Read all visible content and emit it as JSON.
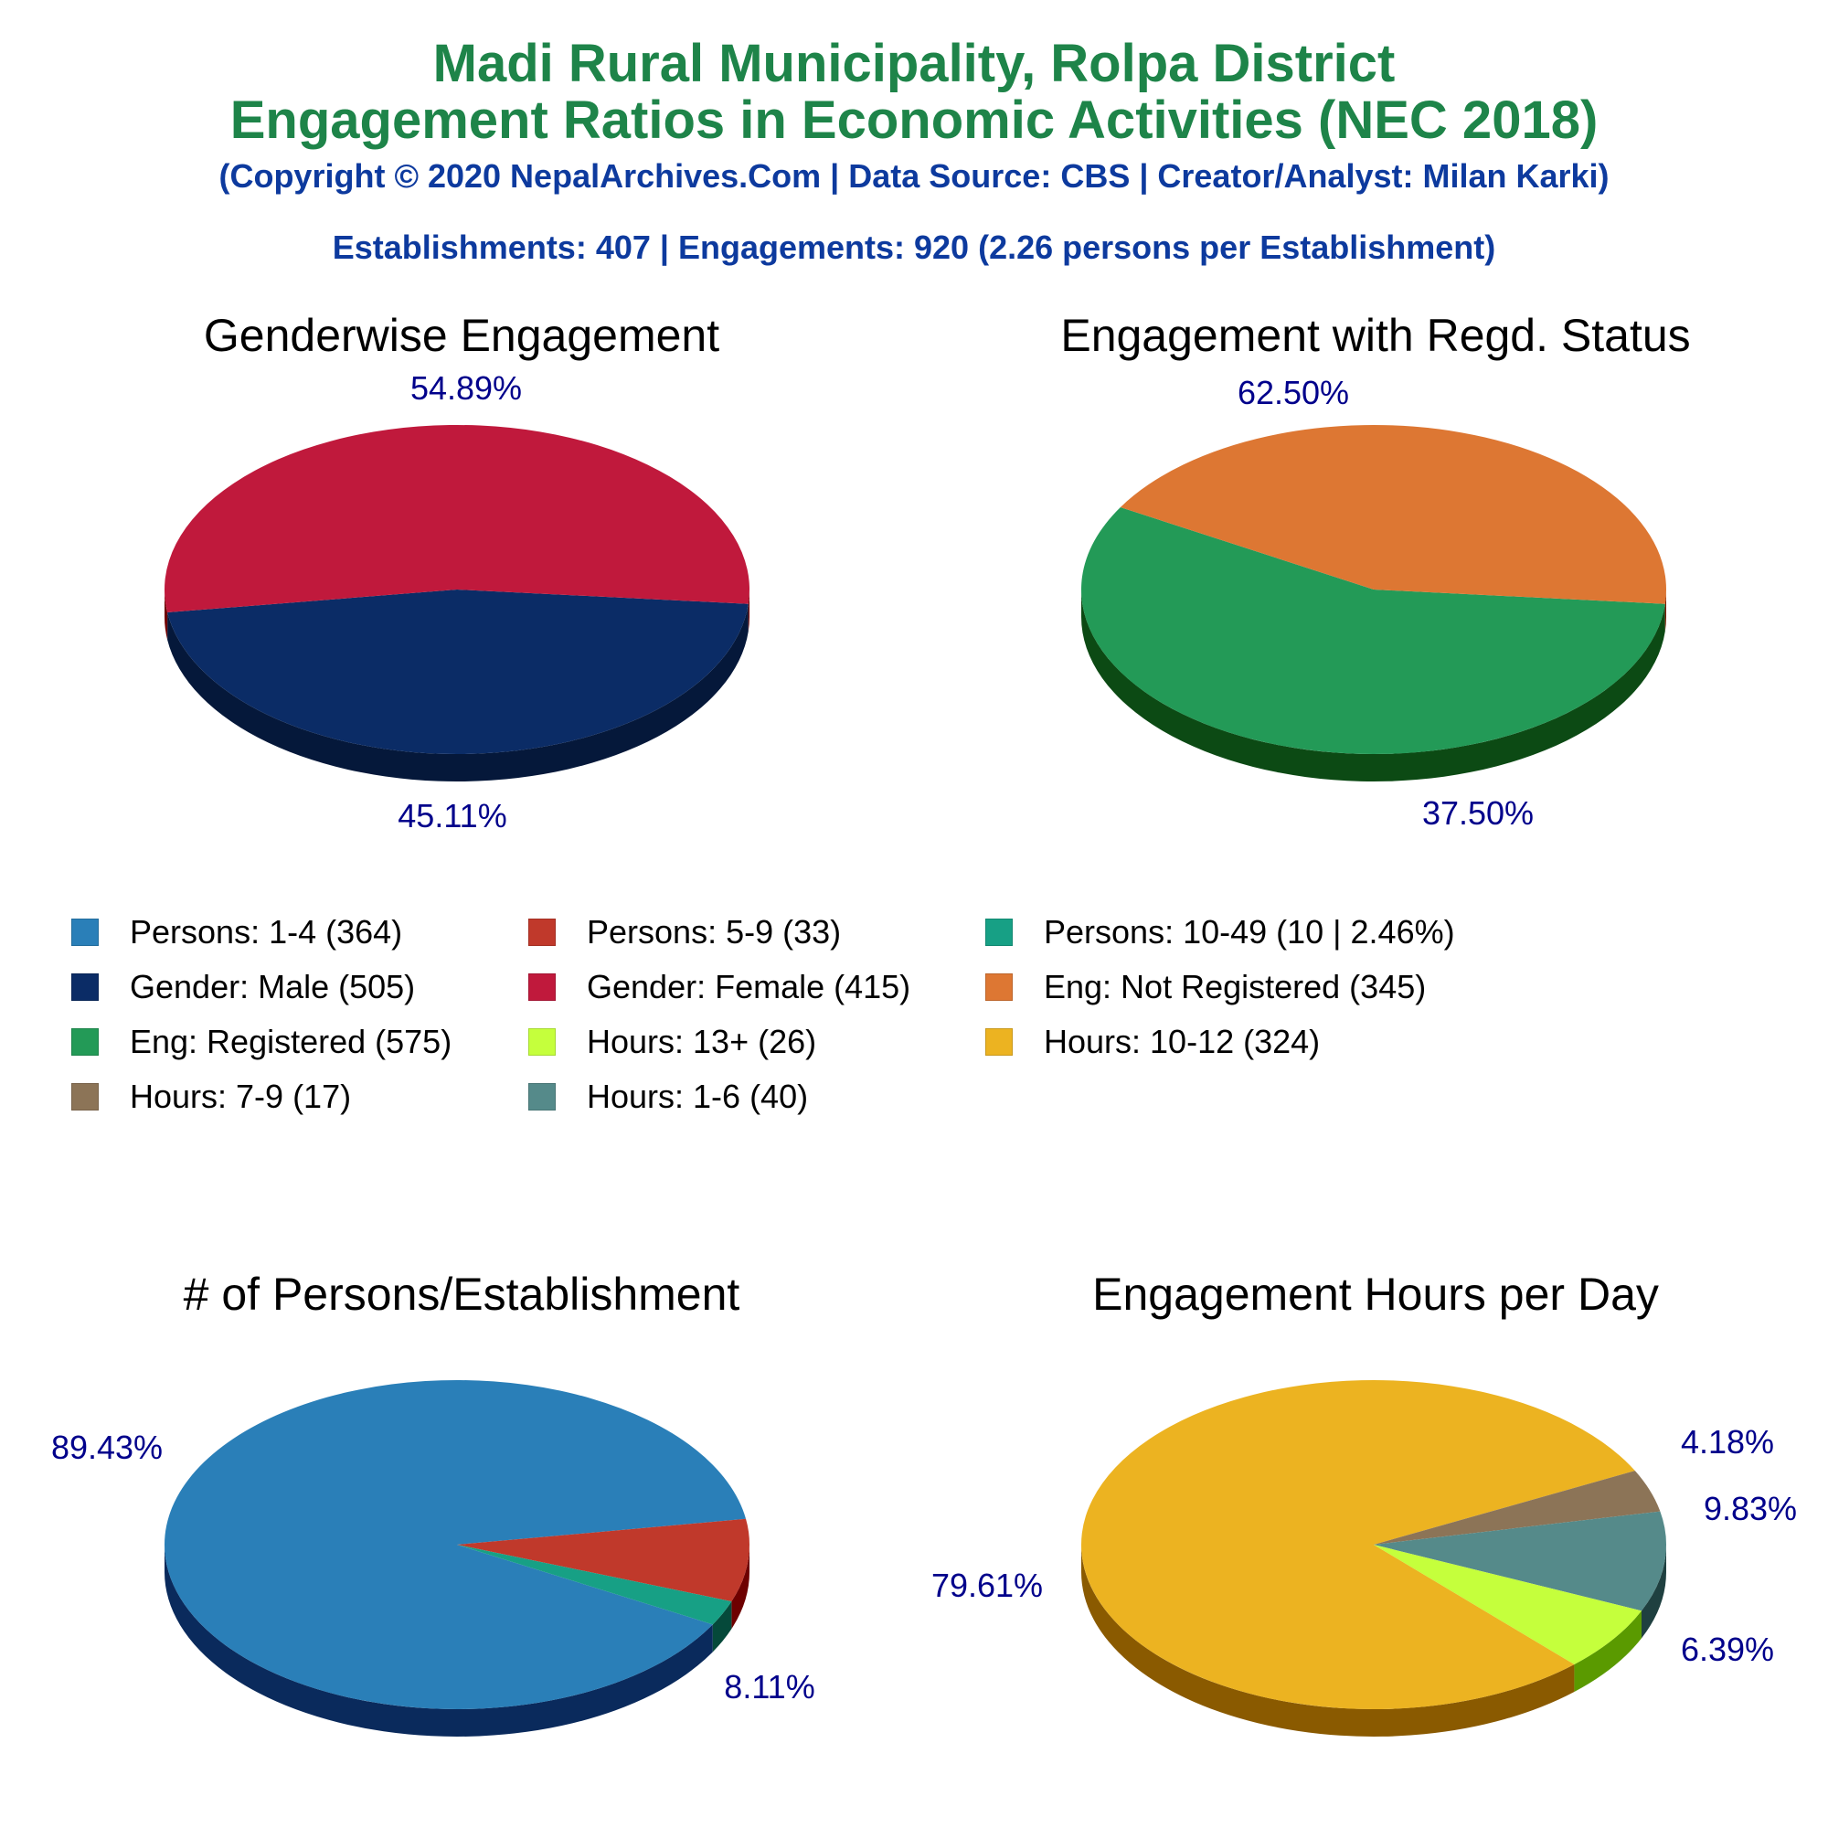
{
  "colors": {
    "title": "#1e8449",
    "subtitle": "#0d3a9e"
  },
  "titles": {
    "line1": "Madi Rural Municipality, Rolpa District",
    "line2": "Engagement Ratios in Economic Activities (NEC 2018)",
    "credit": "(Copyright © 2020 NepalArchives.Com | Data Source: CBS | Creator/Analyst: Milan Karki)",
    "summary": "Establishments: 407 | Engagements: 920 (2.26 persons per Establishment)"
  },
  "legend": [
    {
      "label": "Persons: 1-4 (364)",
      "color": "#2a7fb8"
    },
    {
      "label": "Persons: 5-9 (33)",
      "color": "#c0392b"
    },
    {
      "label": "Persons: 10-49 (10 | 2.46%)",
      "color": "#17a085"
    },
    {
      "label": "Gender: Male (505)",
      "color": "#0b2c66"
    },
    {
      "label": "Gender: Female (415)",
      "color": "#c0193c"
    },
    {
      "label": "Eng: Not Registered (345)",
      "color": "#dd7733"
    },
    {
      "label": "Eng: Registered (575)",
      "color": "#239a57"
    },
    {
      "label": "Hours: 13+ (26)",
      "color": "#c5ff3c"
    },
    {
      "label": "Hours: 10-12 (324)",
      "color": "#ecb321"
    },
    {
      "label": "Hours: 7-9 (17)",
      "color": "#8c7457"
    },
    {
      "label": "Hours: 1-6 (40)",
      "color": "#558a8a"
    }
  ],
  "chart_data": [
    {
      "type": "pie",
      "title": "Genderwise Engagement",
      "slices": [
        {
          "name": "Gender: Male",
          "value": 505,
          "percent_label": "54.89%",
          "color": "#0b2c66",
          "side": "#05183a"
        },
        {
          "name": "Gender: Female",
          "value": 415,
          "percent_label": "45.11%",
          "color": "#c0193c",
          "side": "#6e0000"
        }
      ]
    },
    {
      "type": "pie",
      "title": "Engagement with Regd. Status",
      "slices": [
        {
          "name": "Eng: Registered",
          "value": 575,
          "percent_label": "62.50%",
          "color": "#239a57",
          "side": "#0c4a14"
        },
        {
          "name": "Eng: Not Registered",
          "value": 345,
          "percent_label": "37.50%",
          "color": "#dd7733",
          "side": "#7a1a00"
        }
      ]
    },
    {
      "type": "pie",
      "title": "# of Persons/Establishment",
      "slices": [
        {
          "name": "Persons: 1-4",
          "value": 364,
          "percent_label": "89.43%",
          "color": "#2a7fb8",
          "side": "#0a2a5c"
        },
        {
          "name": "Persons: 5-9",
          "value": 33,
          "percent_label": "8.11%",
          "color": "#c0392b",
          "side": "#6e0000"
        },
        {
          "name": "Persons: 10-49",
          "value": 10,
          "percent_label": "",
          "color": "#17a085",
          "side": "#05493a"
        }
      ]
    },
    {
      "type": "pie",
      "title": "Engagement Hours per Day",
      "slices": [
        {
          "name": "Hours: 10-12",
          "value": 324,
          "percent_label": "79.61%",
          "color": "#ecb321",
          "side": "#8a5a00"
        },
        {
          "name": "Hours: 7-9",
          "value": 17,
          "percent_label": "4.18%",
          "color": "#8c7457",
          "side": "#4a3520"
        },
        {
          "name": "Hours: 1-6",
          "value": 40,
          "percent_label": "9.83%",
          "color": "#558a8a",
          "side": "#1f4040"
        },
        {
          "name": "Hours: 13+",
          "value": 26,
          "percent_label": "6.39%",
          "color": "#c5ff3c",
          "side": "#5a9a00"
        }
      ]
    }
  ]
}
